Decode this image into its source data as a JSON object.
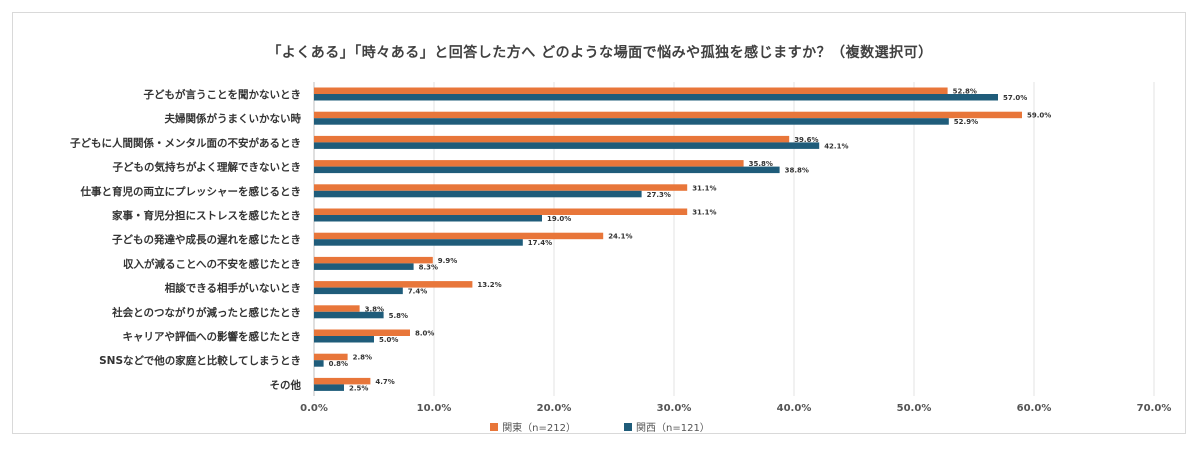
{
  "chart_data": {
    "type": "bar",
    "orientation": "horizontal",
    "title": "「よくある」「時々ある」と回答した方へ どのような場面で悩みや孤独を感じますか？（複数選択可）",
    "categories": [
      "子どもが言うことを聞かないとき",
      "夫婦関係がうまくいかない時",
      "子どもに人間関係・メンタル面の不安があるとき",
      "子どもの気持ちがよく理解できないとき",
      "仕事と育児の両立にプレッシャーを感じるとき",
      "家事・育児分担にストレスを感じたとき",
      "子どもの発達や成長の遅れを感じたとき",
      "収入が減ることへの不安を感じたとき",
      "相談できる相手がいないとき",
      "社会とのつながりが減ったと感じたとき",
      "キャリアや評価への影響を感じたとき",
      "SNSなどで他の家庭と比較してしまうとき",
      "その他"
    ],
    "series": [
      {
        "name": "関東（n=212）",
        "color": "#e8763a",
        "values": [
          52.8,
          59.0,
          39.6,
          35.8,
          31.1,
          31.1,
          24.1,
          9.9,
          13.2,
          3.8,
          8.0,
          2.8,
          4.7
        ],
        "labels": [
          "52.8%",
          "59.0%",
          "39.6%",
          "35.8%",
          "31.1%",
          "31.1%",
          "24.1%",
          "9.9%",
          "13.2%",
          "3.8%",
          "8.0%",
          "2.8%",
          "4.7%"
        ]
      },
      {
        "name": "関西（n=121）",
        "color": "#1f5c7a",
        "values": [
          57.0,
          52.9,
          42.1,
          38.8,
          27.3,
          19.0,
          17.4,
          8.3,
          7.4,
          5.8,
          5.0,
          0.8,
          2.5
        ],
        "labels": [
          "57.0%",
          "52.9%",
          "42.1%",
          "38.8%",
          "27.3%",
          "19.0%",
          "17.4%",
          "8.3%",
          "7.4%",
          "5.8%",
          "5.0%",
          "0.8%",
          "2.5%"
        ]
      }
    ],
    "xlim": [
      0,
      70
    ],
    "ticks": [
      0,
      10,
      20,
      30,
      40,
      50,
      60,
      70
    ],
    "tick_labels": [
      "0.0%",
      "10.0%",
      "20.0%",
      "30.0%",
      "40.0%",
      "50.0%",
      "60.0%",
      "70.0%"
    ],
    "grid": true,
    "legend_position": "bottom"
  }
}
